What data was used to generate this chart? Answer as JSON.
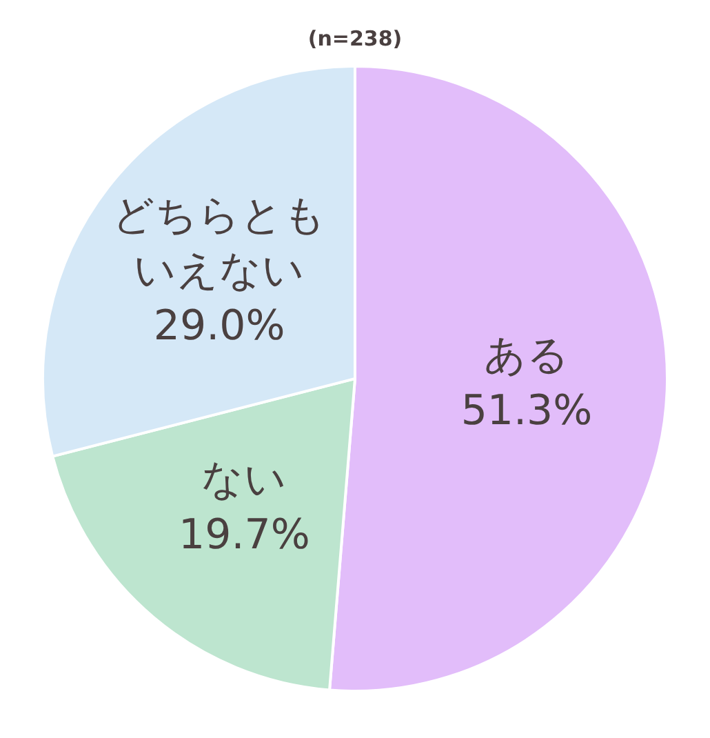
{
  "chart_data": {
    "type": "pie",
    "title": "(n=238)",
    "categories": [
      "ある",
      "ない",
      "どちらともいえない"
    ],
    "values": [
      51.3,
      19.7,
      29.0
    ],
    "colors": [
      "#e2bdfa",
      "#bde5cf",
      "#d5e8f7"
    ],
    "value_labels": [
      "51.3%",
      "19.7%",
      "29.0%"
    ],
    "legend": false
  }
}
